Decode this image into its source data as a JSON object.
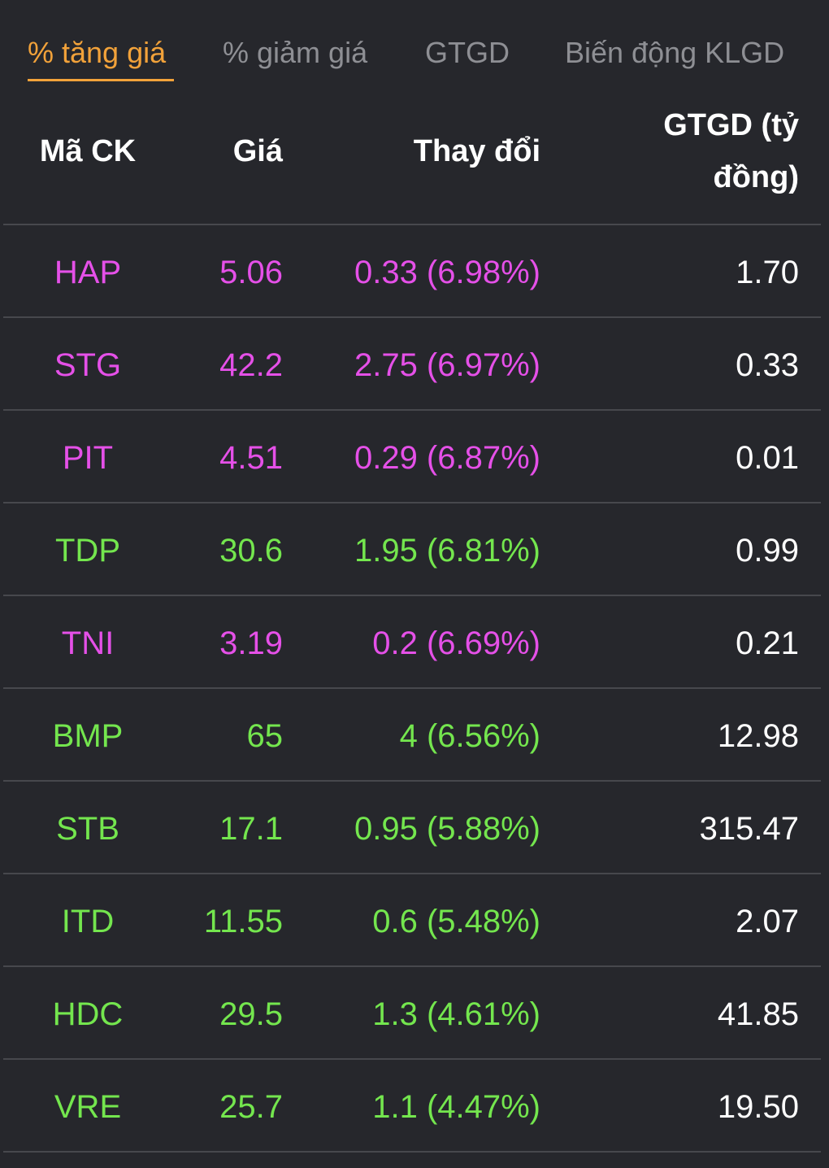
{
  "tabs": [
    {
      "label": "% tăng giá",
      "active": true
    },
    {
      "label": "% giảm giá",
      "active": false
    },
    {
      "label": "GTGD",
      "active": false
    },
    {
      "label": "Biến động KLGD",
      "active": false
    }
  ],
  "columns": {
    "code": "Mã CK",
    "price": "Giá",
    "change": "Thay đổi",
    "value_line1": "GTGD (tỷ",
    "value_line2": "đồng)"
  },
  "colors": {
    "accent": "#f2a23a",
    "ceiling": "#e550e8",
    "up": "#74e64e",
    "value": "#ffffff"
  },
  "rows": [
    {
      "code": "HAP",
      "price": "5.06",
      "change": "0.33 (6.98%)",
      "value": "1.70",
      "status": "ceiling"
    },
    {
      "code": "STG",
      "price": "42.2",
      "change": "2.75 (6.97%)",
      "value": "0.33",
      "status": "ceiling"
    },
    {
      "code": "PIT",
      "price": "4.51",
      "change": "0.29 (6.87%)",
      "value": "0.01",
      "status": "ceiling"
    },
    {
      "code": "TDP",
      "price": "30.6",
      "change": "1.95 (6.81%)",
      "value": "0.99",
      "status": "up"
    },
    {
      "code": "TNI",
      "price": "3.19",
      "change": "0.2 (6.69%)",
      "value": "0.21",
      "status": "ceiling"
    },
    {
      "code": "BMP",
      "price": "65",
      "change": "4 (6.56%)",
      "value": "12.98",
      "status": "up"
    },
    {
      "code": "STB",
      "price": "17.1",
      "change": "0.95 (5.88%)",
      "value": "315.47",
      "status": "up"
    },
    {
      "code": "ITD",
      "price": "11.55",
      "change": "0.6 (5.48%)",
      "value": "2.07",
      "status": "up"
    },
    {
      "code": "HDC",
      "price": "29.5",
      "change": "1.3 (4.61%)",
      "value": "41.85",
      "status": "up"
    },
    {
      "code": "VRE",
      "price": "25.7",
      "change": "1.1 (4.47%)",
      "value": "19.50",
      "status": "up"
    }
  ]
}
